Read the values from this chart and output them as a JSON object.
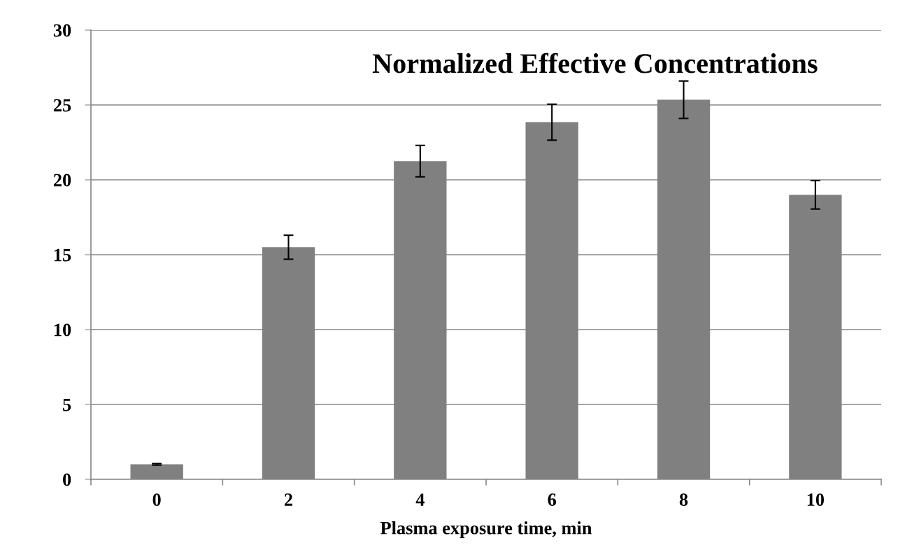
{
  "chart_data": {
    "type": "bar",
    "title": "Normalized Effective Concentrations",
    "xlabel": "Plasma exposure time, min",
    "categories": [
      "0",
      "2",
      "4",
      "6",
      "8",
      "10"
    ],
    "values": [
      1.0,
      15.5,
      21.25,
      23.85,
      25.35,
      19.0
    ],
    "errors": [
      0.05,
      0.8,
      1.05,
      1.2,
      1.25,
      0.95
    ],
    "color": "#808080",
    "ylim": [
      0,
      30
    ],
    "yticks": [
      0,
      5,
      10,
      15,
      20,
      25,
      30
    ],
    "grid": "y"
  }
}
